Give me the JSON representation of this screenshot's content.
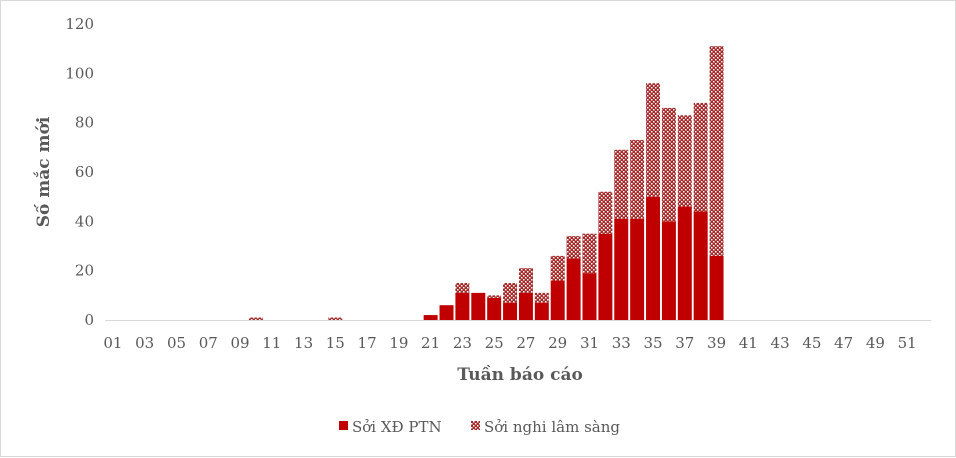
{
  "chart_data": {
    "type": "bar",
    "stacked": true,
    "title": "",
    "xlabel": "Tuần báo cáo",
    "ylabel": "Số mắc mới",
    "ylim": [
      0,
      120
    ],
    "yticks": [
      0,
      20,
      40,
      60,
      80,
      100,
      120
    ],
    "grid": false,
    "legend_position": "bottom",
    "categories": [
      "01",
      "02",
      "03",
      "04",
      "05",
      "06",
      "07",
      "08",
      "09",
      "10",
      "11",
      "12",
      "13",
      "14",
      "15",
      "16",
      "17",
      "18",
      "19",
      "20",
      "21",
      "22",
      "23",
      "24",
      "25",
      "26",
      "27",
      "28",
      "29",
      "30",
      "31",
      "32",
      "33",
      "34",
      "35",
      "36",
      "37",
      "38",
      "39",
      "40",
      "41",
      "42",
      "43",
      "44",
      "45",
      "46",
      "47",
      "48",
      "49",
      "50",
      "51",
      "52"
    ],
    "xtick_labels": [
      "01",
      "03",
      "05",
      "07",
      "09",
      "11",
      "13",
      "15",
      "17",
      "19",
      "21",
      "23",
      "25",
      "27",
      "29",
      "31",
      "33",
      "35",
      "37",
      "39",
      "41",
      "43",
      "45",
      "47",
      "49",
      "51"
    ],
    "series": [
      {
        "name": "Sởi XĐ PTN",
        "color": "#c00000",
        "pattern": "solid",
        "values": [
          0,
          0,
          0,
          0,
          0,
          0,
          0,
          0,
          0,
          0,
          0,
          0,
          0,
          0,
          0,
          0,
          0,
          0,
          0,
          0,
          2,
          6,
          11,
          11,
          9,
          7,
          11,
          7,
          16,
          25,
          19,
          35,
          41,
          41,
          50,
          40,
          46,
          44,
          26,
          0,
          0,
          0,
          0,
          0,
          0,
          0,
          0,
          0,
          0,
          0,
          0,
          0
        ]
      },
      {
        "name": "Sởi nghi lâm sàng",
        "color": "#c0504d",
        "pattern": "dotted",
        "values": [
          0,
          0,
          0,
          0,
          0,
          0,
          0,
          0,
          0,
          1,
          0,
          0,
          0,
          0,
          1,
          0,
          0,
          0,
          0,
          0,
          0,
          0,
          4,
          0,
          1,
          8,
          10,
          4,
          10,
          9,
          16,
          17,
          28,
          32,
          46,
          46,
          37,
          44,
          85,
          0,
          0,
          0,
          0,
          0,
          0,
          0,
          0,
          0,
          0,
          0,
          0,
          0
        ]
      }
    ]
  }
}
